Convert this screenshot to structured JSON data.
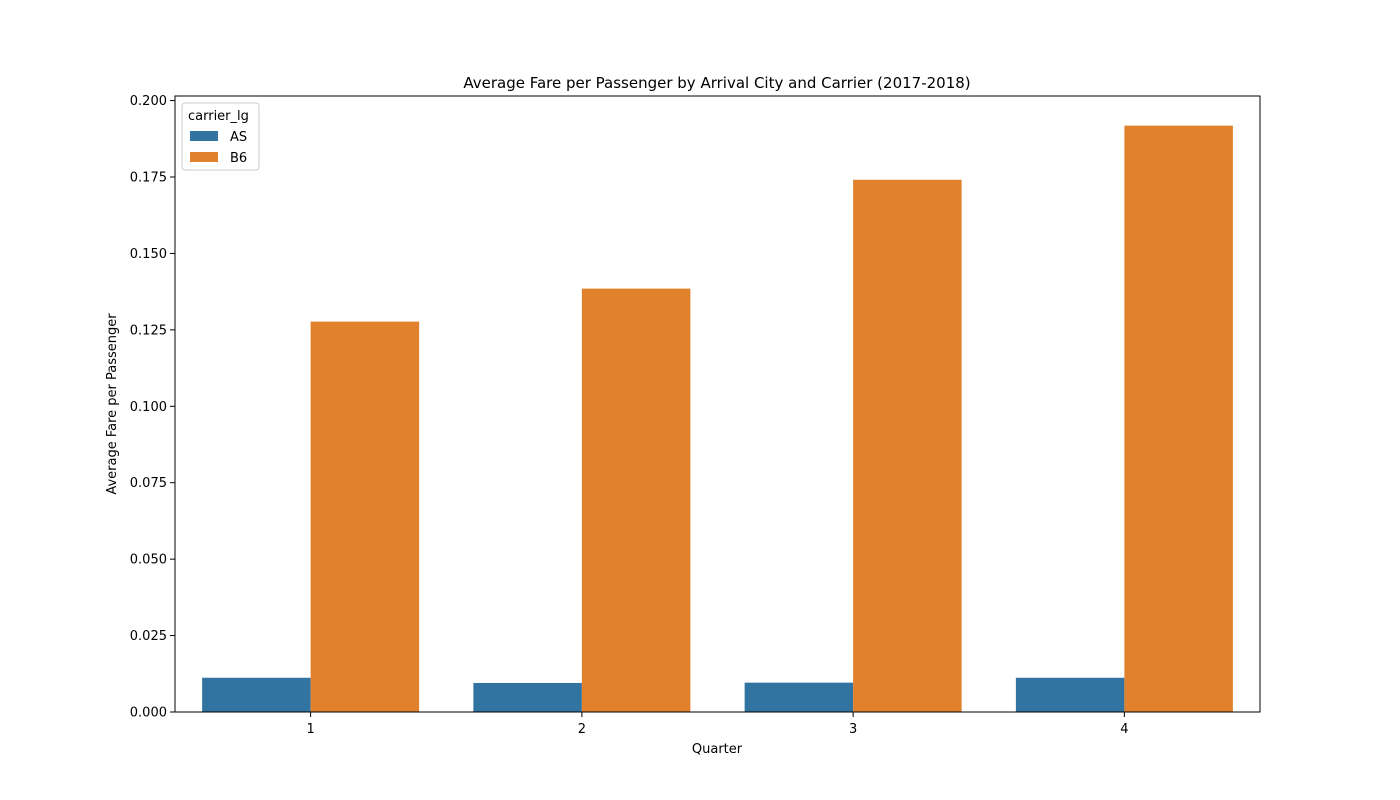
{
  "chart_data": {
    "type": "bar",
    "title": "Average Fare per Passenger by Arrival City and Carrier (2017-2018)",
    "xlabel": "Quarter",
    "ylabel": "Average Fare per Passenger",
    "categories": [
      "1",
      "2",
      "3",
      "4"
    ],
    "series": [
      {
        "name": "AS",
        "color": "#3274a1",
        "values": [
          0.0112,
          0.0095,
          0.0096,
          0.0112
        ]
      },
      {
        "name": "B6",
        "color": "#e1812c",
        "values": [
          0.1277,
          0.1385,
          0.1741,
          0.1918
        ]
      }
    ],
    "ylim": [
      0,
      0.2015
    ],
    "yticks": [
      "0.000",
      "0.025",
      "0.050",
      "0.075",
      "0.100",
      "0.125",
      "0.150",
      "0.175",
      "0.200"
    ],
    "grid": false,
    "legend": {
      "title": "carrier_lg",
      "position": "top-left"
    }
  }
}
